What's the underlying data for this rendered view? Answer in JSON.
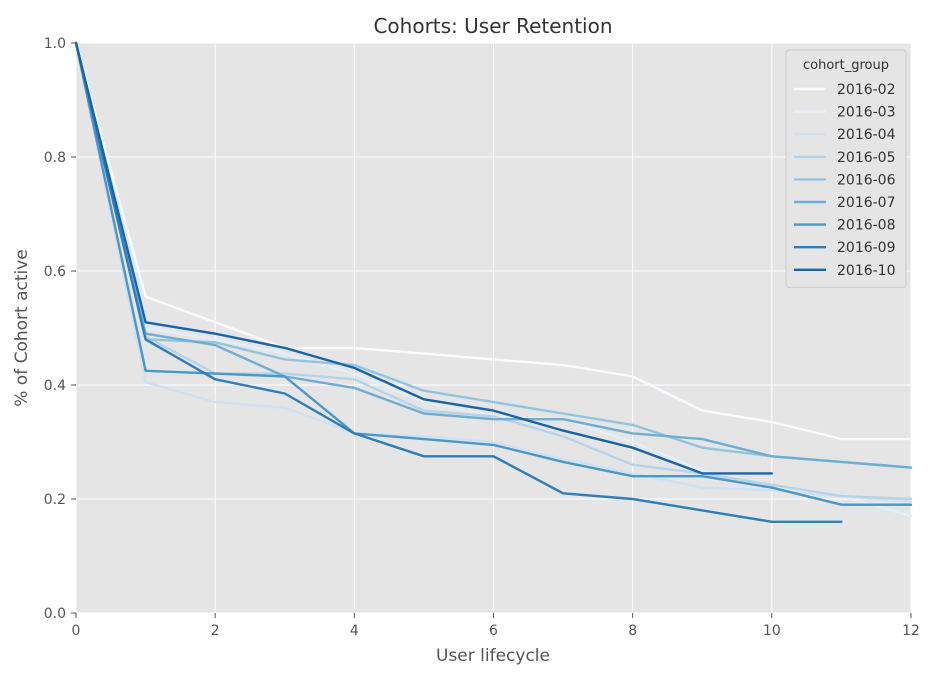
{
  "chart_data": {
    "type": "line",
    "title": "Cohorts: User Retention",
    "xlabel": "User lifecycle",
    "ylabel": "% of Cohort active",
    "xlim": [
      0,
      12
    ],
    "ylim": [
      0.0,
      1.0
    ],
    "xticks": [
      0,
      2,
      4,
      6,
      8,
      10,
      12
    ],
    "yticks": [
      0.0,
      0.2,
      0.4,
      0.6,
      0.8,
      1.0
    ],
    "xtick_labels": [
      "0",
      "2",
      "4",
      "6",
      "8",
      "10",
      "12"
    ],
    "ytick_labels": [
      "0.0",
      "0.2",
      "0.4",
      "0.6",
      "0.8",
      "1.0"
    ],
    "grid": true,
    "legend": {
      "title": "cohort_group",
      "position": "top-right"
    },
    "colors": {
      "background": "#e5e5e5",
      "grid": "#ffffff"
    },
    "series": [
      {
        "name": "2016-02",
        "color": "#f7fbff",
        "values": [
          1.0,
          0.555,
          0.51,
          0.465,
          0.465,
          0.455,
          0.445,
          0.435,
          0.415,
          0.355,
          0.335,
          0.305,
          0.305
        ]
      },
      {
        "name": "2016-03",
        "color": "#e3eef9",
        "values": [
          1.0,
          0.5,
          0.48,
          0.455,
          0.42,
          0.37,
          0.345,
          0.34,
          0.3,
          0.25,
          0.22,
          0.205,
          0.17
        ]
      },
      {
        "name": "2016-04",
        "color": "#cfe1f2",
        "values": [
          1.0,
          0.405,
          0.37,
          0.36,
          0.315,
          0.31,
          0.3,
          0.27,
          0.245,
          0.22,
          0.215,
          0.205,
          0.195
        ]
      },
      {
        "name": "2016-05",
        "color": "#b5d4e9",
        "values": [
          1.0,
          0.485,
          0.42,
          0.42,
          0.41,
          0.355,
          0.345,
          0.31,
          0.26,
          0.245,
          0.225,
          0.205,
          0.2
        ]
      },
      {
        "name": "2016-06",
        "color": "#93c4df",
        "values": [
          1.0,
          0.48,
          0.475,
          0.445,
          0.435,
          0.39,
          0.37,
          0.35,
          0.33,
          0.29,
          0.275,
          0.265,
          0.255
        ]
      },
      {
        "name": "2016-07",
        "color": "#6daed5",
        "values": [
          1.0,
          0.49,
          0.47,
          0.415,
          0.395,
          0.35,
          0.34,
          0.34,
          0.315,
          0.305,
          0.275,
          0.265,
          0.255
        ]
      },
      {
        "name": "2016-08",
        "color": "#4a98c9",
        "values": [
          1.0,
          0.425,
          0.42,
          0.415,
          0.315,
          0.305,
          0.295,
          0.265,
          0.24,
          0.24,
          0.22,
          0.19,
          0.19
        ]
      },
      {
        "name": "2016-09",
        "color": "#2e7ebc",
        "values": [
          1.0,
          0.48,
          0.41,
          0.385,
          0.315,
          0.275,
          0.275,
          0.21,
          0.2,
          0.18,
          0.16,
          0.16,
          null
        ]
      },
      {
        "name": "2016-10",
        "color": "#1764ab",
        "values": [
          1.0,
          0.51,
          0.49,
          0.465,
          0.43,
          0.375,
          0.355,
          0.32,
          0.29,
          0.245,
          0.245,
          null,
          null
        ]
      }
    ]
  }
}
